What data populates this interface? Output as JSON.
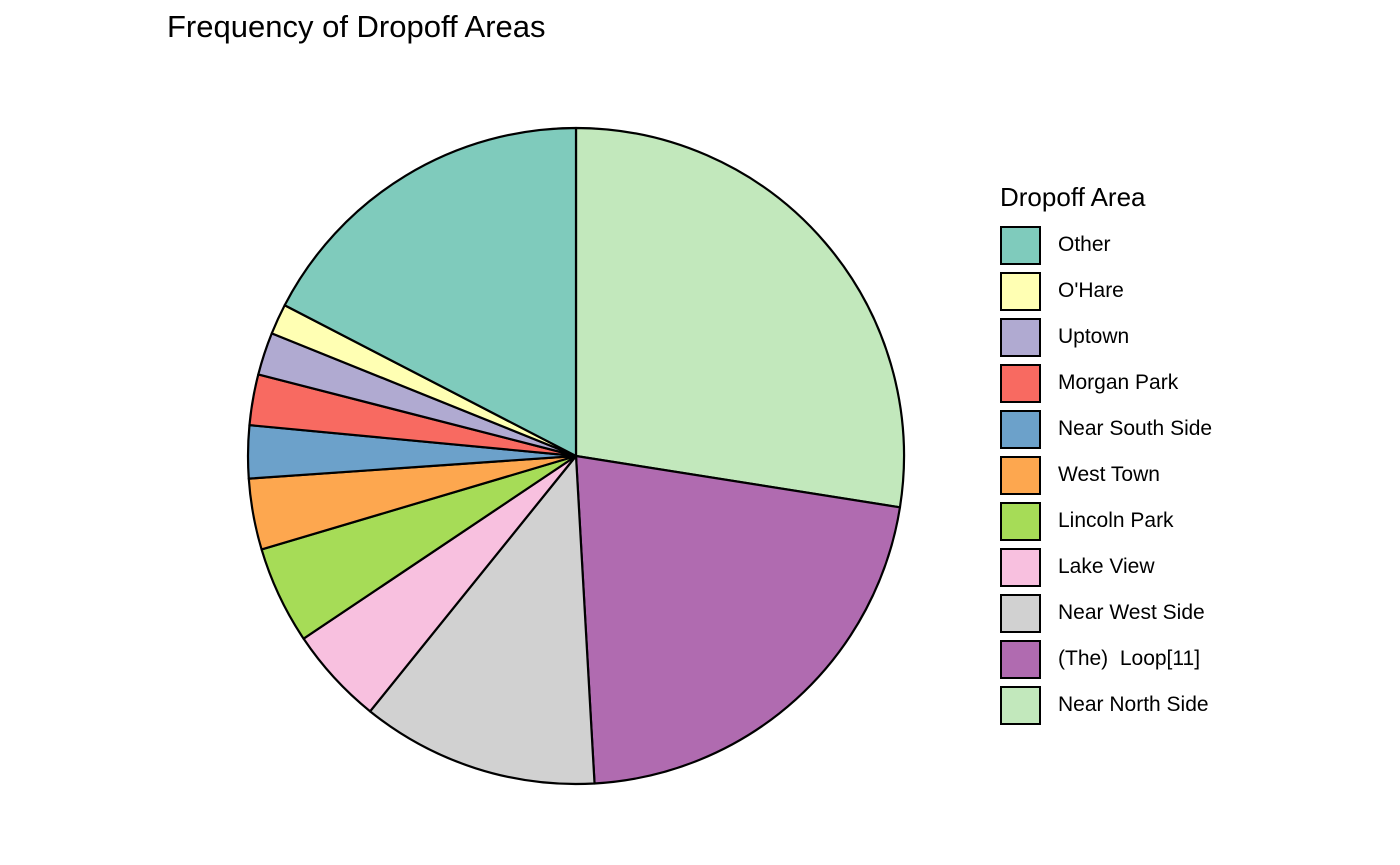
{
  "chart_data": {
    "type": "pie",
    "title": "Frequency of Dropoff Areas",
    "legend": {
      "title": "Dropoff Area",
      "placement": "right"
    },
    "start": "top",
    "direction": "clockwise",
    "slices": [
      {
        "label": "Near North Side",
        "value": 27.5,
        "color": "#C2E8BC"
      },
      {
        "label": "(The)  Loop[11]",
        "value": 21.6,
        "color": "#B06BB0"
      },
      {
        "label": "Near West Side",
        "value": 11.7,
        "color": "#D1D1D1"
      },
      {
        "label": "Lake View",
        "value": 4.8,
        "color": "#F8C0DF"
      },
      {
        "label": "Lincoln Park",
        "value": 4.8,
        "color": "#A6DC57"
      },
      {
        "label": "West Town",
        "value": 3.5,
        "color": "#FDA74F"
      },
      {
        "label": "Near South Side",
        "value": 2.6,
        "color": "#6CA1CA"
      },
      {
        "label": "Morgan Park",
        "value": 2.5,
        "color": "#F86A61"
      },
      {
        "label": "Uptown",
        "value": 2.1,
        "color": "#B0AAD1"
      },
      {
        "label": "O'Hare",
        "value": 1.5,
        "color": "#FFFFB3"
      },
      {
        "label": "Other",
        "value": 17.4,
        "color": "#7FCBBC"
      }
    ],
    "legend_order": [
      "Other",
      "O'Hare",
      "Uptown",
      "Morgan Park",
      "Near South Side",
      "West Town",
      "Lincoln Park",
      "Lake View",
      "Near West Side",
      "(The)  Loop[11]",
      "Near North Side"
    ]
  }
}
